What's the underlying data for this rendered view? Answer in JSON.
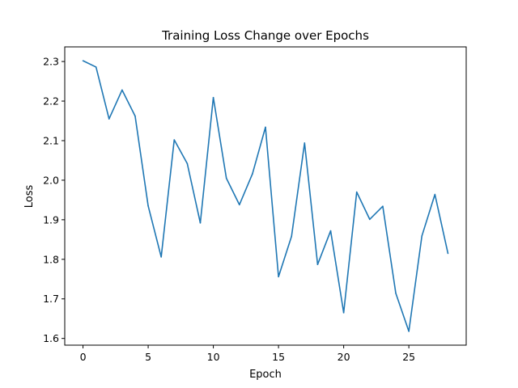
{
  "chart_data": {
    "type": "line",
    "title": "Training Loss Change over Epochs",
    "xlabel": "Epoch",
    "ylabel": "Loss",
    "xlim": [
      -1.4,
      29.4
    ],
    "ylim": [
      1.583,
      2.337
    ],
    "xticks": [
      0,
      5,
      10,
      15,
      20,
      25
    ],
    "yticks": [
      1.6,
      1.7,
      1.8,
      1.9,
      2.0,
      2.1,
      2.2,
      2.3
    ],
    "ytick_labels": [
      "1.6",
      "1.7",
      "1.8",
      "1.9",
      "2.0",
      "2.1",
      "2.2",
      "2.3"
    ],
    "grid": false,
    "series": [
      {
        "color": "#1f77b4",
        "x": [
          0,
          1,
          2,
          3,
          4,
          5,
          6,
          7,
          8,
          9,
          10,
          11,
          12,
          13,
          14,
          15,
          16,
          17,
          18,
          19,
          20,
          21,
          22,
          23,
          24,
          25,
          26,
          27,
          28
        ],
        "y": [
          2.302,
          2.286,
          2.155,
          2.228,
          2.162,
          1.935,
          1.806,
          2.102,
          2.042,
          1.892,
          2.209,
          2.005,
          1.938,
          2.016,
          2.134,
          1.756,
          1.858,
          2.094,
          1.787,
          1.872,
          1.665,
          1.97,
          1.901,
          1.934,
          1.714,
          1.618,
          1.859,
          1.964,
          1.815
        ]
      }
    ]
  }
}
